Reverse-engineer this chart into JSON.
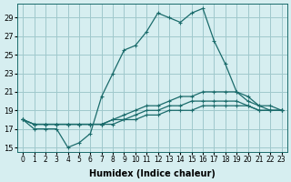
{
  "xlabel": "Humidex (Indice chaleur)",
  "ylabel": "",
  "bg_color": "#d6eef0",
  "grid_color": "#a0c8cc",
  "line_color": "#1a6b6b",
  "xlim": [
    -0.5,
    23.5
  ],
  "ylim": [
    14.5,
    30.5
  ],
  "yticks": [
    15,
    17,
    19,
    21,
    23,
    25,
    27,
    29
  ],
  "xticks": [
    0,
    1,
    2,
    3,
    4,
    5,
    6,
    7,
    8,
    9,
    10,
    11,
    12,
    13,
    14,
    15,
    16,
    17,
    18,
    19,
    20,
    21,
    22,
    23
  ],
  "xtick_labels": [
    "0",
    "1",
    "2",
    "3",
    "4",
    "5",
    "6",
    "7",
    "8",
    "9",
    "10",
    "11",
    "12",
    "13",
    "14",
    "15",
    "16",
    "17",
    "18",
    "19",
    "20",
    "21",
    "22",
    "23"
  ],
  "series": [
    [
      18,
      17,
      17,
      17,
      15,
      15.5,
      16.5,
      20.5,
      23,
      25.5,
      26,
      27.5,
      29.5,
      29,
      28.5,
      29.5,
      30,
      26.5,
      24,
      21,
      20.5,
      19.5,
      19.5,
      19
    ],
    [
      18,
      17.5,
      17.5,
      17.5,
      17.5,
      17.5,
      17.5,
      17.5,
      18,
      18.5,
      19,
      19.5,
      19.5,
      20,
      20.5,
      20.5,
      21,
      21,
      21,
      21,
      20,
      19.5,
      19,
      19
    ],
    [
      18,
      17.5,
      17.5,
      17.5,
      17.5,
      17.5,
      17.5,
      17.5,
      18,
      18,
      18.5,
      19,
      19,
      19.5,
      19.5,
      20,
      20,
      20,
      20,
      20,
      19.5,
      19,
      19,
      19
    ],
    [
      18,
      17.5,
      17.5,
      17.5,
      17.5,
      17.5,
      17.5,
      17.5,
      17.5,
      18,
      18,
      18.5,
      18.5,
      19,
      19,
      19,
      19.5,
      19.5,
      19.5,
      19.5,
      19.5,
      19,
      19,
      19
    ]
  ],
  "marker": "+"
}
